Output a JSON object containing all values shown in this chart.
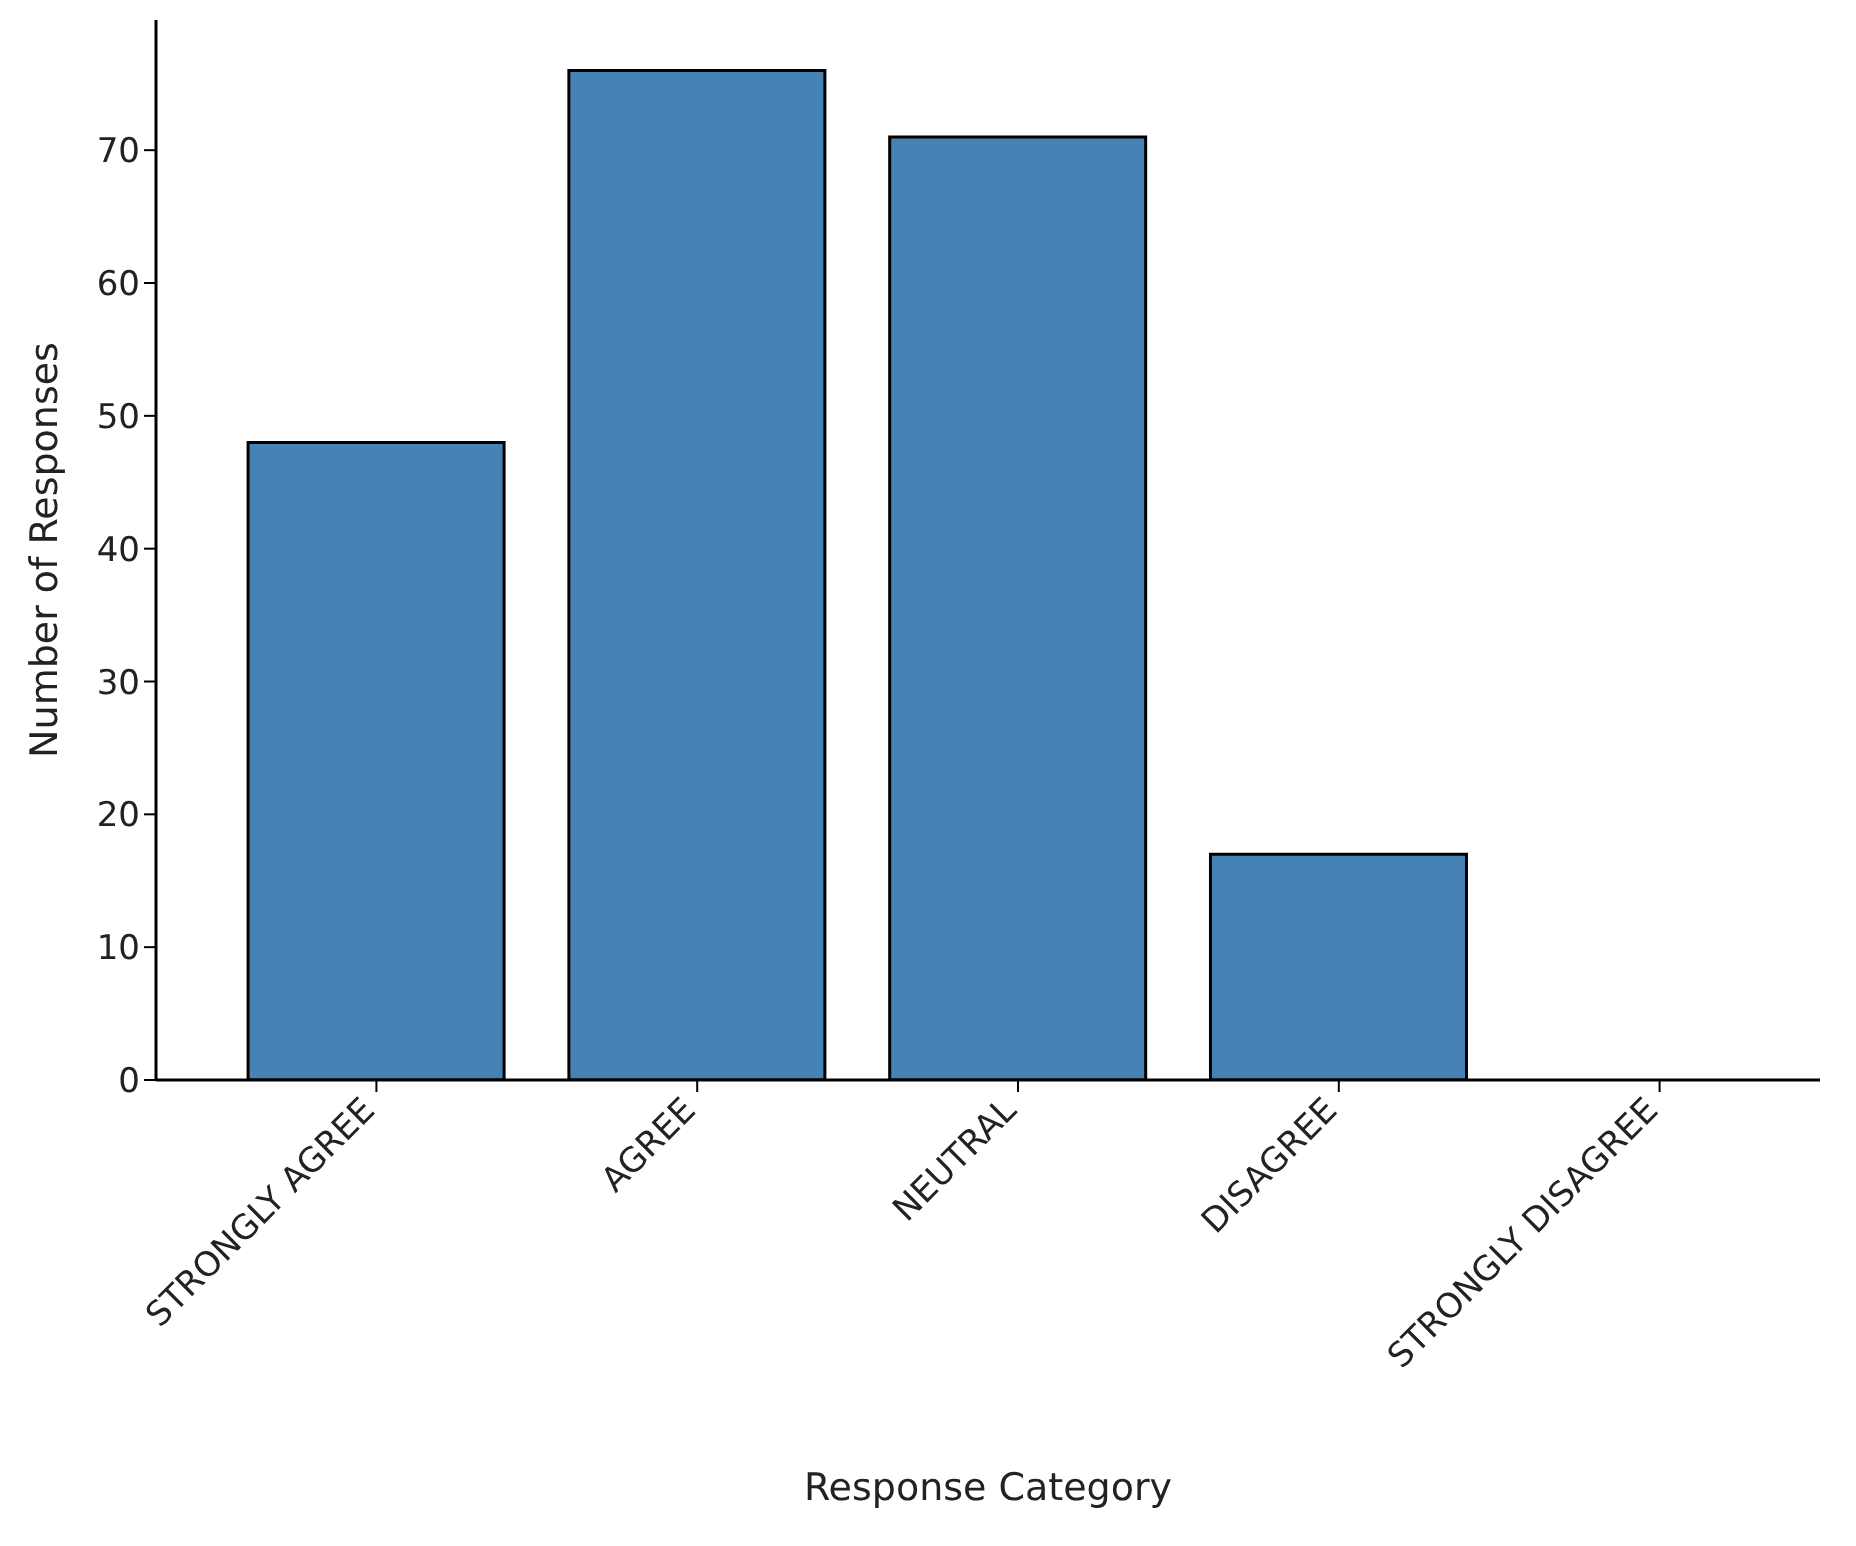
{
  "chart_data": {
    "type": "bar",
    "xlabel": "Response Category",
    "ylabel": "Number of Responses",
    "categories": [
      "STRONGLY AGREE",
      "AGREE",
      "NEUTRAL",
      "DISAGREE",
      "STRONGLY DISAGREE"
    ],
    "values": [
      48,
      76,
      71,
      17,
      0
    ],
    "color": "#4682b4",
    "ylim": [
      0,
      79.8
    ],
    "yticks": [
      0,
      10,
      20,
      30,
      40,
      50,
      60,
      70
    ],
    "grid": false,
    "legend": false
  }
}
